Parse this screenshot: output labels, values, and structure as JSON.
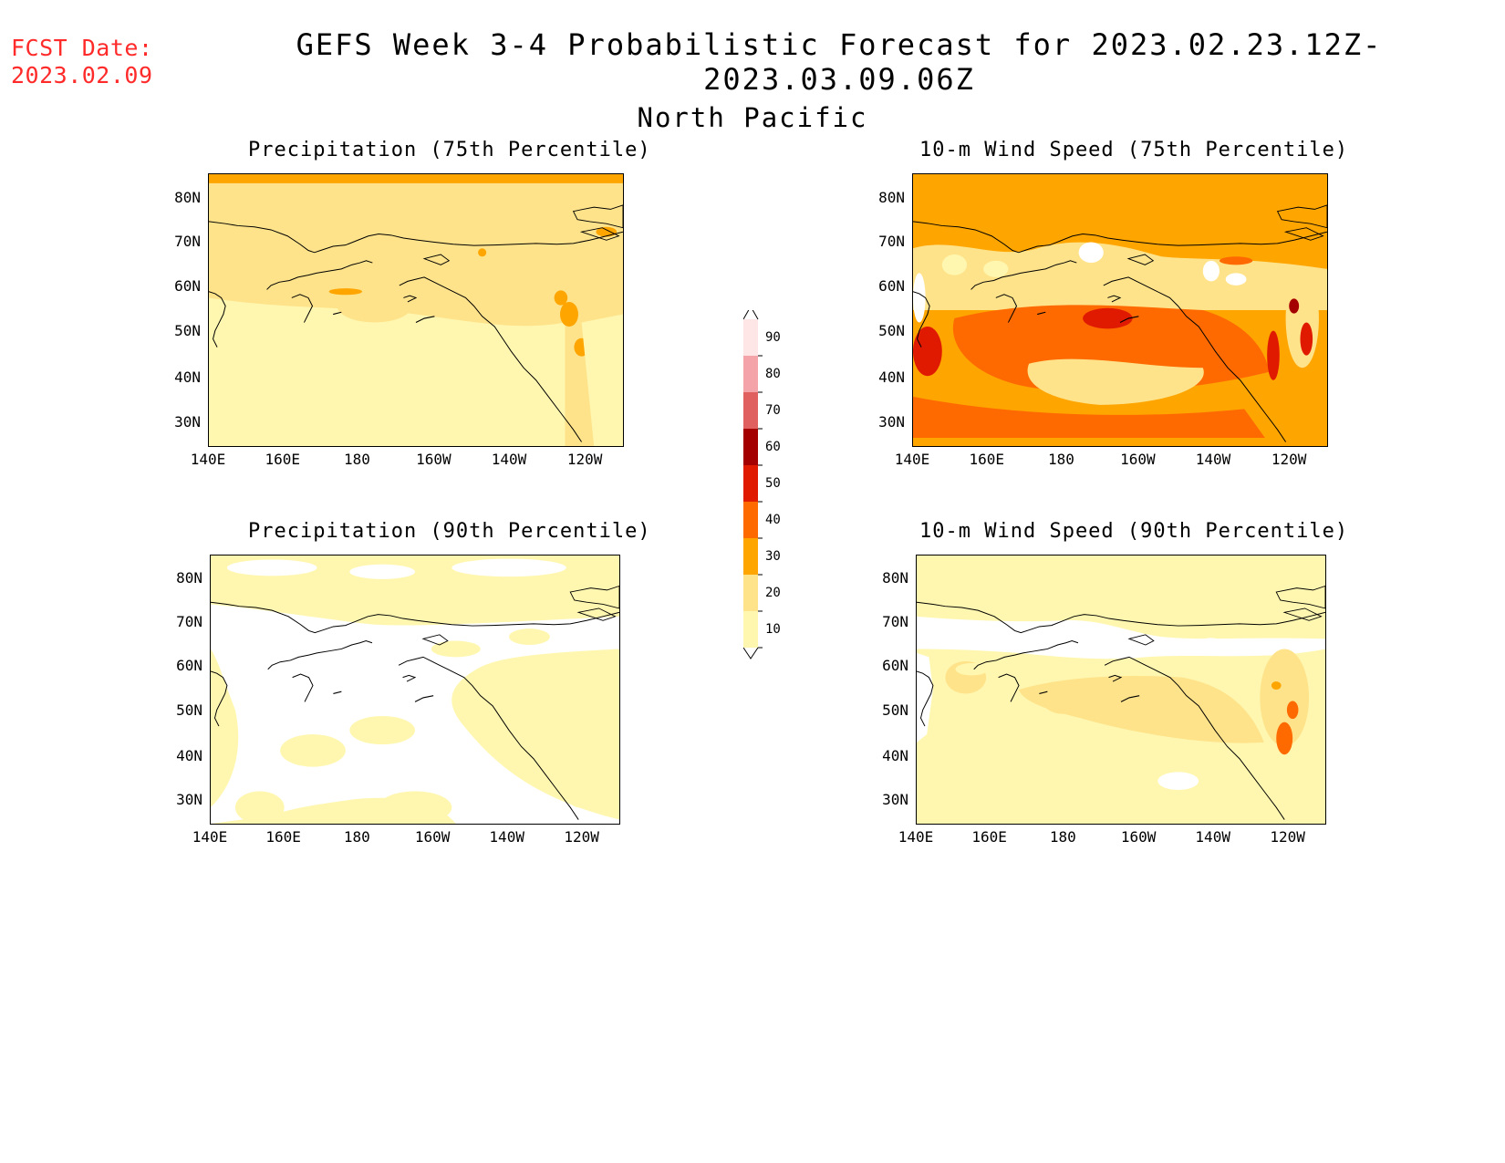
{
  "header": {
    "fcst_label": "FCST Date:",
    "fcst_date": "2023.02.09",
    "title": "GEFS Week 3-4 Probabilistic Forecast for 2023.02.23.12Z-2023.03.09.06Z",
    "subtitle": "North Pacific"
  },
  "panels": [
    {
      "id": "p75",
      "title": "Precipitation (75th Percentile)",
      "dominant": "#FFE38A",
      "north_band": "#FFA500"
    },
    {
      "id": "w75",
      "title": "10-m Wind Speed (75th Percentile)",
      "dominant": "#FFA500",
      "north_band": "#FFA500"
    },
    {
      "id": "p90",
      "title": "Precipitation (90th Percentile)",
      "dominant": "#FFF7B0",
      "north_band": "#FFF7B0"
    },
    {
      "id": "w90",
      "title": "10-m Wind Speed (90th Percentile)",
      "dominant": "#FFF7B0",
      "north_band": "#FFF7B0"
    }
  ],
  "axes": {
    "lon_labels": [
      "140E",
      "160E",
      "180",
      "160W",
      "140W",
      "120W"
    ],
    "lat_labels": [
      "80N",
      "70N",
      "60N",
      "50N",
      "40N",
      "30N"
    ]
  },
  "legend": {
    "levels": [
      "90",
      "80",
      "70",
      "60",
      "50",
      "40",
      "30",
      "20",
      "10"
    ],
    "colors": [
      "#FFE6E6",
      "#F4A3A8",
      "#E06060",
      "#A50000",
      "#E01A00",
      "#FF6A00",
      "#FFA500",
      "#FFE38A",
      "#FFF7B0"
    ]
  }
}
